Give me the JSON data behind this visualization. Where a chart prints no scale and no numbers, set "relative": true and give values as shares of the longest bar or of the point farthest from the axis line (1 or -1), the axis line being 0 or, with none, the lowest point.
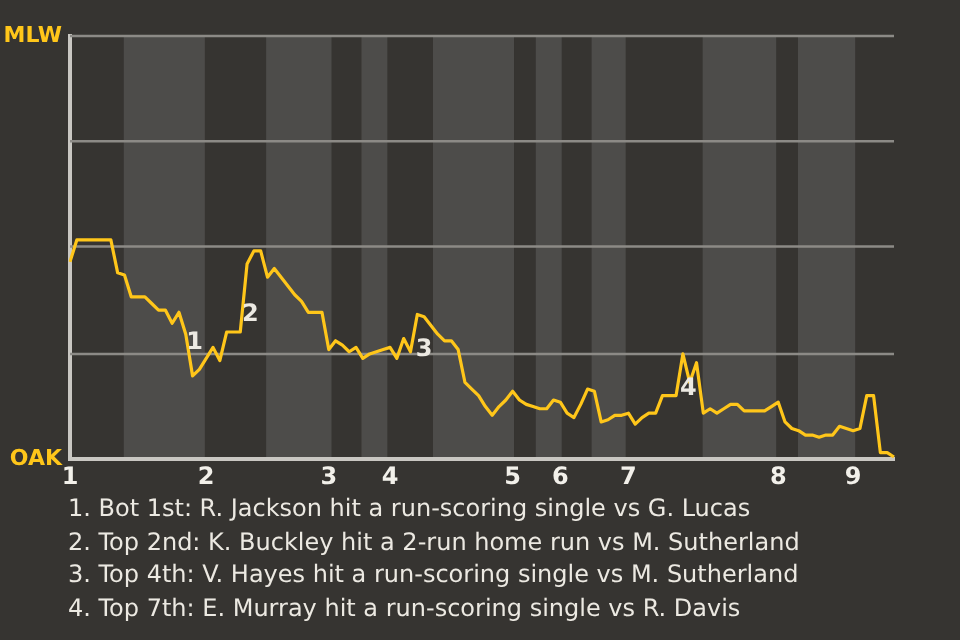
{
  "chart_data": {
    "type": "line",
    "relative": true,
    "categories": [
      "1",
      null,
      null,
      null,
      null,
      null,
      null,
      null,
      null,
      null,
      null,
      null,
      null,
      null,
      null,
      null,
      null,
      null,
      null,
      null,
      "2",
      null,
      null,
      null,
      null,
      null,
      null,
      null,
      null,
      null,
      null,
      null,
      null,
      null,
      null,
      null,
      null,
      null,
      "3",
      null,
      null,
      null,
      null,
      null,
      null,
      null,
      null,
      "4",
      null,
      null,
      null,
      null,
      null,
      null,
      null,
      null,
      null,
      null,
      null,
      null,
      null,
      null,
      null,
      null,
      null,
      "5",
      null,
      null,
      null,
      null,
      null,
      null,
      "6",
      null,
      null,
      null,
      null,
      null,
      null,
      null,
      null,
      null,
      "7",
      null,
      null,
      null,
      null,
      null,
      null,
      null,
      null,
      null,
      null,
      null,
      null,
      null,
      null,
      null,
      null,
      null,
      null,
      null,
      null,
      null,
      "8",
      null,
      null,
      null,
      null,
      null,
      null,
      null,
      null,
      null,
      null,
      "9",
      null,
      null,
      null,
      null,
      null,
      null
    ],
    "ref_lines": [
      {
        "axis": "y",
        "value": 0.48,
        "color": "#8c8a86"
      },
      {
        "axis": "y",
        "value": 0.97,
        "color": "#8c8a86"
      },
      {
        "axis": "y",
        "value": 1.45,
        "color": "#8c8a86"
      },
      {
        "axis": "y",
        "value": 1.93,
        "color": "#8c8a86"
      }
    ],
    "series": [
      {
        "color": "#ffc61a",
        "values": [
          0.9,
          1,
          1,
          1,
          1,
          1,
          1,
          0.85,
          0.84,
          0.74,
          0.74,
          0.74,
          0.71,
          0.68,
          0.68,
          0.62,
          0.67,
          0.57,
          0.38,
          0.41,
          0.46,
          0.51,
          0.45,
          0.58,
          0.58,
          0.58,
          0.89,
          0.95,
          0.95,
          0.83,
          0.87,
          0.83,
          0.79,
          0.75,
          0.72,
          0.67,
          0.67,
          0.67,
          0.5,
          0.54,
          0.52,
          0.49,
          0.51,
          0.46,
          0.48,
          0.49,
          0.5,
          0.51,
          0.46,
          0.55,
          0.49,
          0.66,
          0.65,
          0.61,
          0.57,
          0.54,
          0.54,
          0.5,
          0.35,
          0.32,
          0.29,
          0.24,
          0.2,
          0.24,
          0.27,
          0.31,
          0.27,
          0.25,
          0.24,
          0.23,
          0.23,
          0.27,
          0.26,
          0.21,
          0.19,
          0.25,
          0.32,
          0.31,
          0.17,
          0.18,
          0.2,
          0.2,
          0.21,
          0.16,
          0.19,
          0.21,
          0.21,
          0.29,
          0.29,
          0.29,
          0.48,
          0.35,
          0.44,
          0.21,
          0.23,
          0.21,
          0.23,
          0.25,
          0.25,
          0.22,
          0.22,
          0.22,
          0.22,
          0.24,
          0.26,
          0.17,
          0.14,
          0.13,
          0.11,
          0.11,
          0.1,
          0.11,
          0.11,
          0.15,
          0.14,
          0.13,
          0.14,
          0.29,
          0.29,
          0.03,
          0.03,
          0.01
        ]
      }
    ],
    "annotations": [
      "MLW",
      "OAK",
      "1",
      "2",
      "3",
      "4",
      "1. Bot 1st: R. Jackson hit a run-scoring single vs G. Lucas",
      "2. Top 2nd: K. Buckley hit a 2-run home run vs M. Sutherland",
      "3. Top 4th: V. Hayes hit a run-scoring single vs M. Sutherland",
      "4. Top 7th: E. Murray hit a run-scoring single vs R. Davis"
    ]
  }
}
